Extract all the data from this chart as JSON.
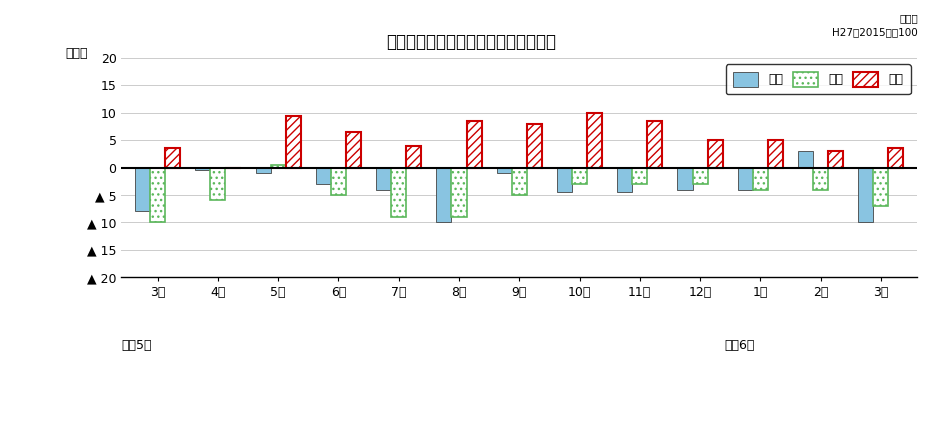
{
  "title": "生産・出荷・在庫の前年同月比の推移",
  "subtitle_right": "原指数\nH27（2015）＝100",
  "ylabel": "（％）",
  "months": [
    "3月",
    "4月",
    "5月",
    "6月",
    "7月",
    "8月",
    "9月",
    "10月",
    "11月",
    "12月",
    "1月",
    "2月",
    "3月"
  ],
  "label_r5": "令和5年",
  "label_r6": "令和6年",
  "production": [
    -8.0,
    -0.5,
    -1.0,
    -3.0,
    -4.0,
    -10.0,
    -1.0,
    -4.5,
    -4.5,
    -4.0,
    -4.0,
    3.0,
    -10.0
  ],
  "shipment": [
    -10.0,
    -6.0,
    0.5,
    -5.0,
    -9.0,
    -9.0,
    -5.0,
    -3.0,
    -3.0,
    -3.0,
    -4.0,
    -4.0,
    -7.0
  ],
  "inventory": [
    3.5,
    0.0,
    9.5,
    6.5,
    4.0,
    8.5,
    8.0,
    10.0,
    8.5,
    5.0,
    5.0,
    3.0,
    3.5
  ],
  "ylim": [
    -20,
    20
  ],
  "yticks": [
    20,
    15,
    10,
    5,
    0,
    -5,
    -10,
    -15,
    -20
  ],
  "bar_width": 0.25,
  "color_production": "#89C4E1",
  "color_shipment_border": "#5CB85C",
  "color_inventory_border": "#CC0000",
  "bg_color": "#FFFFFF",
  "grid_color": "#CCCCCC",
  "legend_labels": [
    "生産",
    "出荷",
    "在庫"
  ]
}
